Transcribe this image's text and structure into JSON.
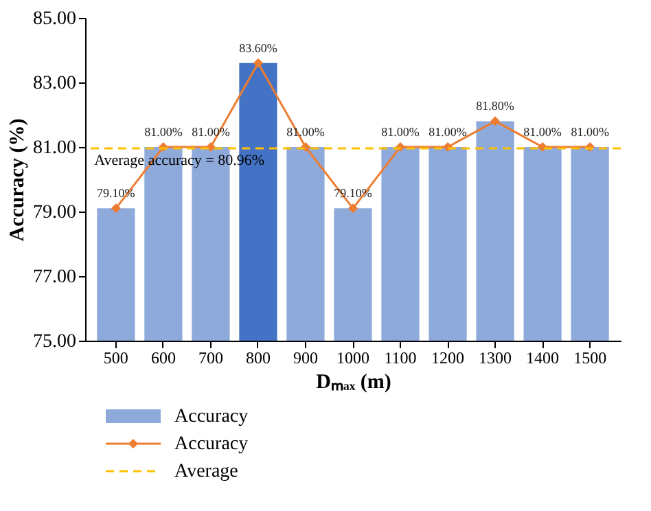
{
  "chart_data": {
    "type": "bar",
    "xlabel": "Dₘₐₓ (m)",
    "ylabel": "Accuracy (%)",
    "categories": [
      "500",
      "600",
      "700",
      "800",
      "900",
      "1000",
      "1100",
      "1200",
      "1300",
      "1400",
      "1500"
    ],
    "series": [
      {
        "name": "Accuracy",
        "colors": [
          "#8eaadb",
          "#8eaadb",
          "#8eaadb",
          "#4472c4",
          "#8eaadb",
          "#8eaadb",
          "#8eaadb",
          "#8eaadb",
          "#8eaadb",
          "#8eaadb",
          "#8eaadb"
        ],
        "values": [
          79.1,
          81.0,
          81.0,
          83.6,
          81.0,
          79.1,
          81.0,
          81.0,
          81.8,
          81.0,
          81.0
        ]
      },
      {
        "name": "Accuracy",
        "type": "line",
        "color": "#ed7d31",
        "marker": "diamond",
        "line_style": "solid",
        "values": [
          79.1,
          81.0,
          81.0,
          83.6,
          81.0,
          79.1,
          81.0,
          81.0,
          81.8,
          81.0,
          81.0
        ],
        "value_labels": [
          "79.10%",
          "81.00%",
          "81.00%",
          "83.60%",
          "81.00%",
          "79.10%",
          "81.00%",
          "81.00%",
          "81.80%",
          "81.00%",
          "81.00%"
        ]
      }
    ],
    "ref_lines": [
      {
        "axis": "y",
        "value": 80.96,
        "label": "Average",
        "color": "#ffc000",
        "line_style": "dashed"
      }
    ],
    "annotations": [
      {
        "text": "Average accuracy = 80.96%",
        "x": "500",
        "y": 80.96
      }
    ],
    "ylim": [
      75,
      85
    ],
    "yticks": [
      {
        "value": 75,
        "label": "75.00"
      },
      {
        "value": 77,
        "label": "77.00"
      },
      {
        "value": 79,
        "label": "79.00"
      },
      {
        "value": 81,
        "label": "81.00"
      },
      {
        "value": 83,
        "label": "83.00"
      },
      {
        "value": 85,
        "label": "85.00"
      }
    ],
    "grid": false,
    "legend": "bottom"
  }
}
